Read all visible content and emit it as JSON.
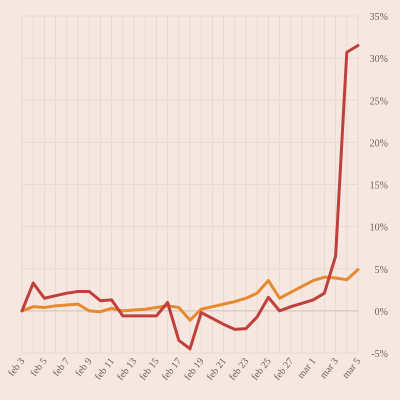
{
  "chart_data": {
    "type": "line",
    "title": "",
    "xlabel": "",
    "ylabel": "",
    "ylim": [
      -5,
      35
    ],
    "grid": true,
    "x": [
      "feb 3",
      "feb 4",
      "feb 5",
      "feb 6",
      "feb 7",
      "feb 8",
      "feb 9",
      "feb 10",
      "feb 11",
      "feb 12",
      "feb 13",
      "feb 14",
      "feb 15",
      "feb 16",
      "feb 17",
      "feb 18",
      "feb 19",
      "feb 20",
      "feb 21",
      "feb 22",
      "feb 23",
      "feb 24",
      "feb 25",
      "feb 26",
      "feb 27",
      "feb 28",
      "mar 1",
      "mar 2",
      "mar 3",
      "mar 4",
      "mar 5"
    ],
    "x_tick_labels": [
      "feb 3",
      "feb 5",
      "feb 7",
      "feb 9",
      "feb 11",
      "feb 13",
      "feb 15",
      "feb 17",
      "feb 19",
      "feb 21",
      "feb 23",
      "feb 25",
      "feb 27",
      "mar 1",
      "mar 3",
      "mar 5"
    ],
    "y_ticks": [
      -5,
      0,
      5,
      10,
      15,
      20,
      25,
      30,
      35
    ],
    "y_tick_labels": [
      "-5%",
      "0%",
      "5%",
      "10%",
      "15%",
      "20%",
      "25%",
      "30%",
      "35%"
    ],
    "series": [
      {
        "color": "#e58a2f",
        "values": [
          0.0,
          0.5,
          0.4,
          0.6,
          0.7,
          0.8,
          0.0,
          -0.1,
          0.3,
          0.0,
          0.1,
          0.2,
          0.4,
          0.6,
          0.4,
          -1.1,
          0.2,
          0.5,
          0.8,
          1.1,
          1.5,
          2.1,
          3.6,
          1.5,
          2.2,
          2.9,
          3.6,
          4.0,
          3.9,
          3.7,
          4.9
        ]
      },
      {
        "color": "#c0403c",
        "values": [
          0.0,
          3.3,
          1.5,
          1.8,
          2.1,
          2.3,
          2.3,
          1.2,
          1.3,
          -0.6,
          -0.6,
          -0.6,
          -0.6,
          1.0,
          -3.5,
          -4.5,
          -0.2,
          -0.9,
          -1.6,
          -2.2,
          -2.1,
          -0.7,
          1.6,
          0.0,
          0.5,
          0.9,
          1.3,
          2.1,
          6.5,
          30.7,
          31.5
        ]
      }
    ]
  }
}
